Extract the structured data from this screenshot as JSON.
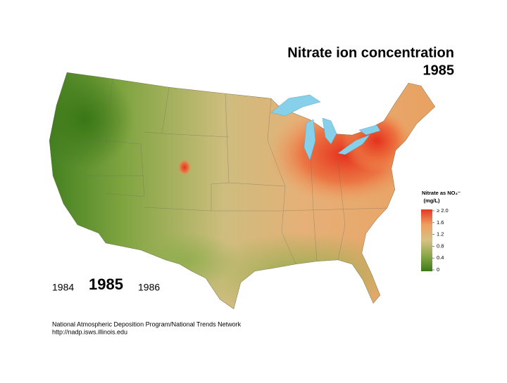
{
  "header": {
    "title": "Nitrate ion concentration",
    "year": "1985"
  },
  "legend": {
    "title": "Nitrate as NO₃⁻",
    "unit": "(mg/L)",
    "lim": [
      0,
      2
    ],
    "ticks": [
      {
        "value": 2,
        "label": "≥ 2.0"
      },
      1.6,
      1.2,
      0.8,
      0.4,
      0
    ],
    "colors": [
      "#3d7a1a",
      "#8aa848",
      "#d6c185",
      "#eea060",
      "#e23a22"
    ]
  },
  "nav": {
    "prev": "1984",
    "current": "1985",
    "next": "1986"
  },
  "footer": {
    "line1": "National Atmospheric Deposition Program/National Trends Network",
    "line2": "http://nadp.isws.illinois.edu"
  }
}
